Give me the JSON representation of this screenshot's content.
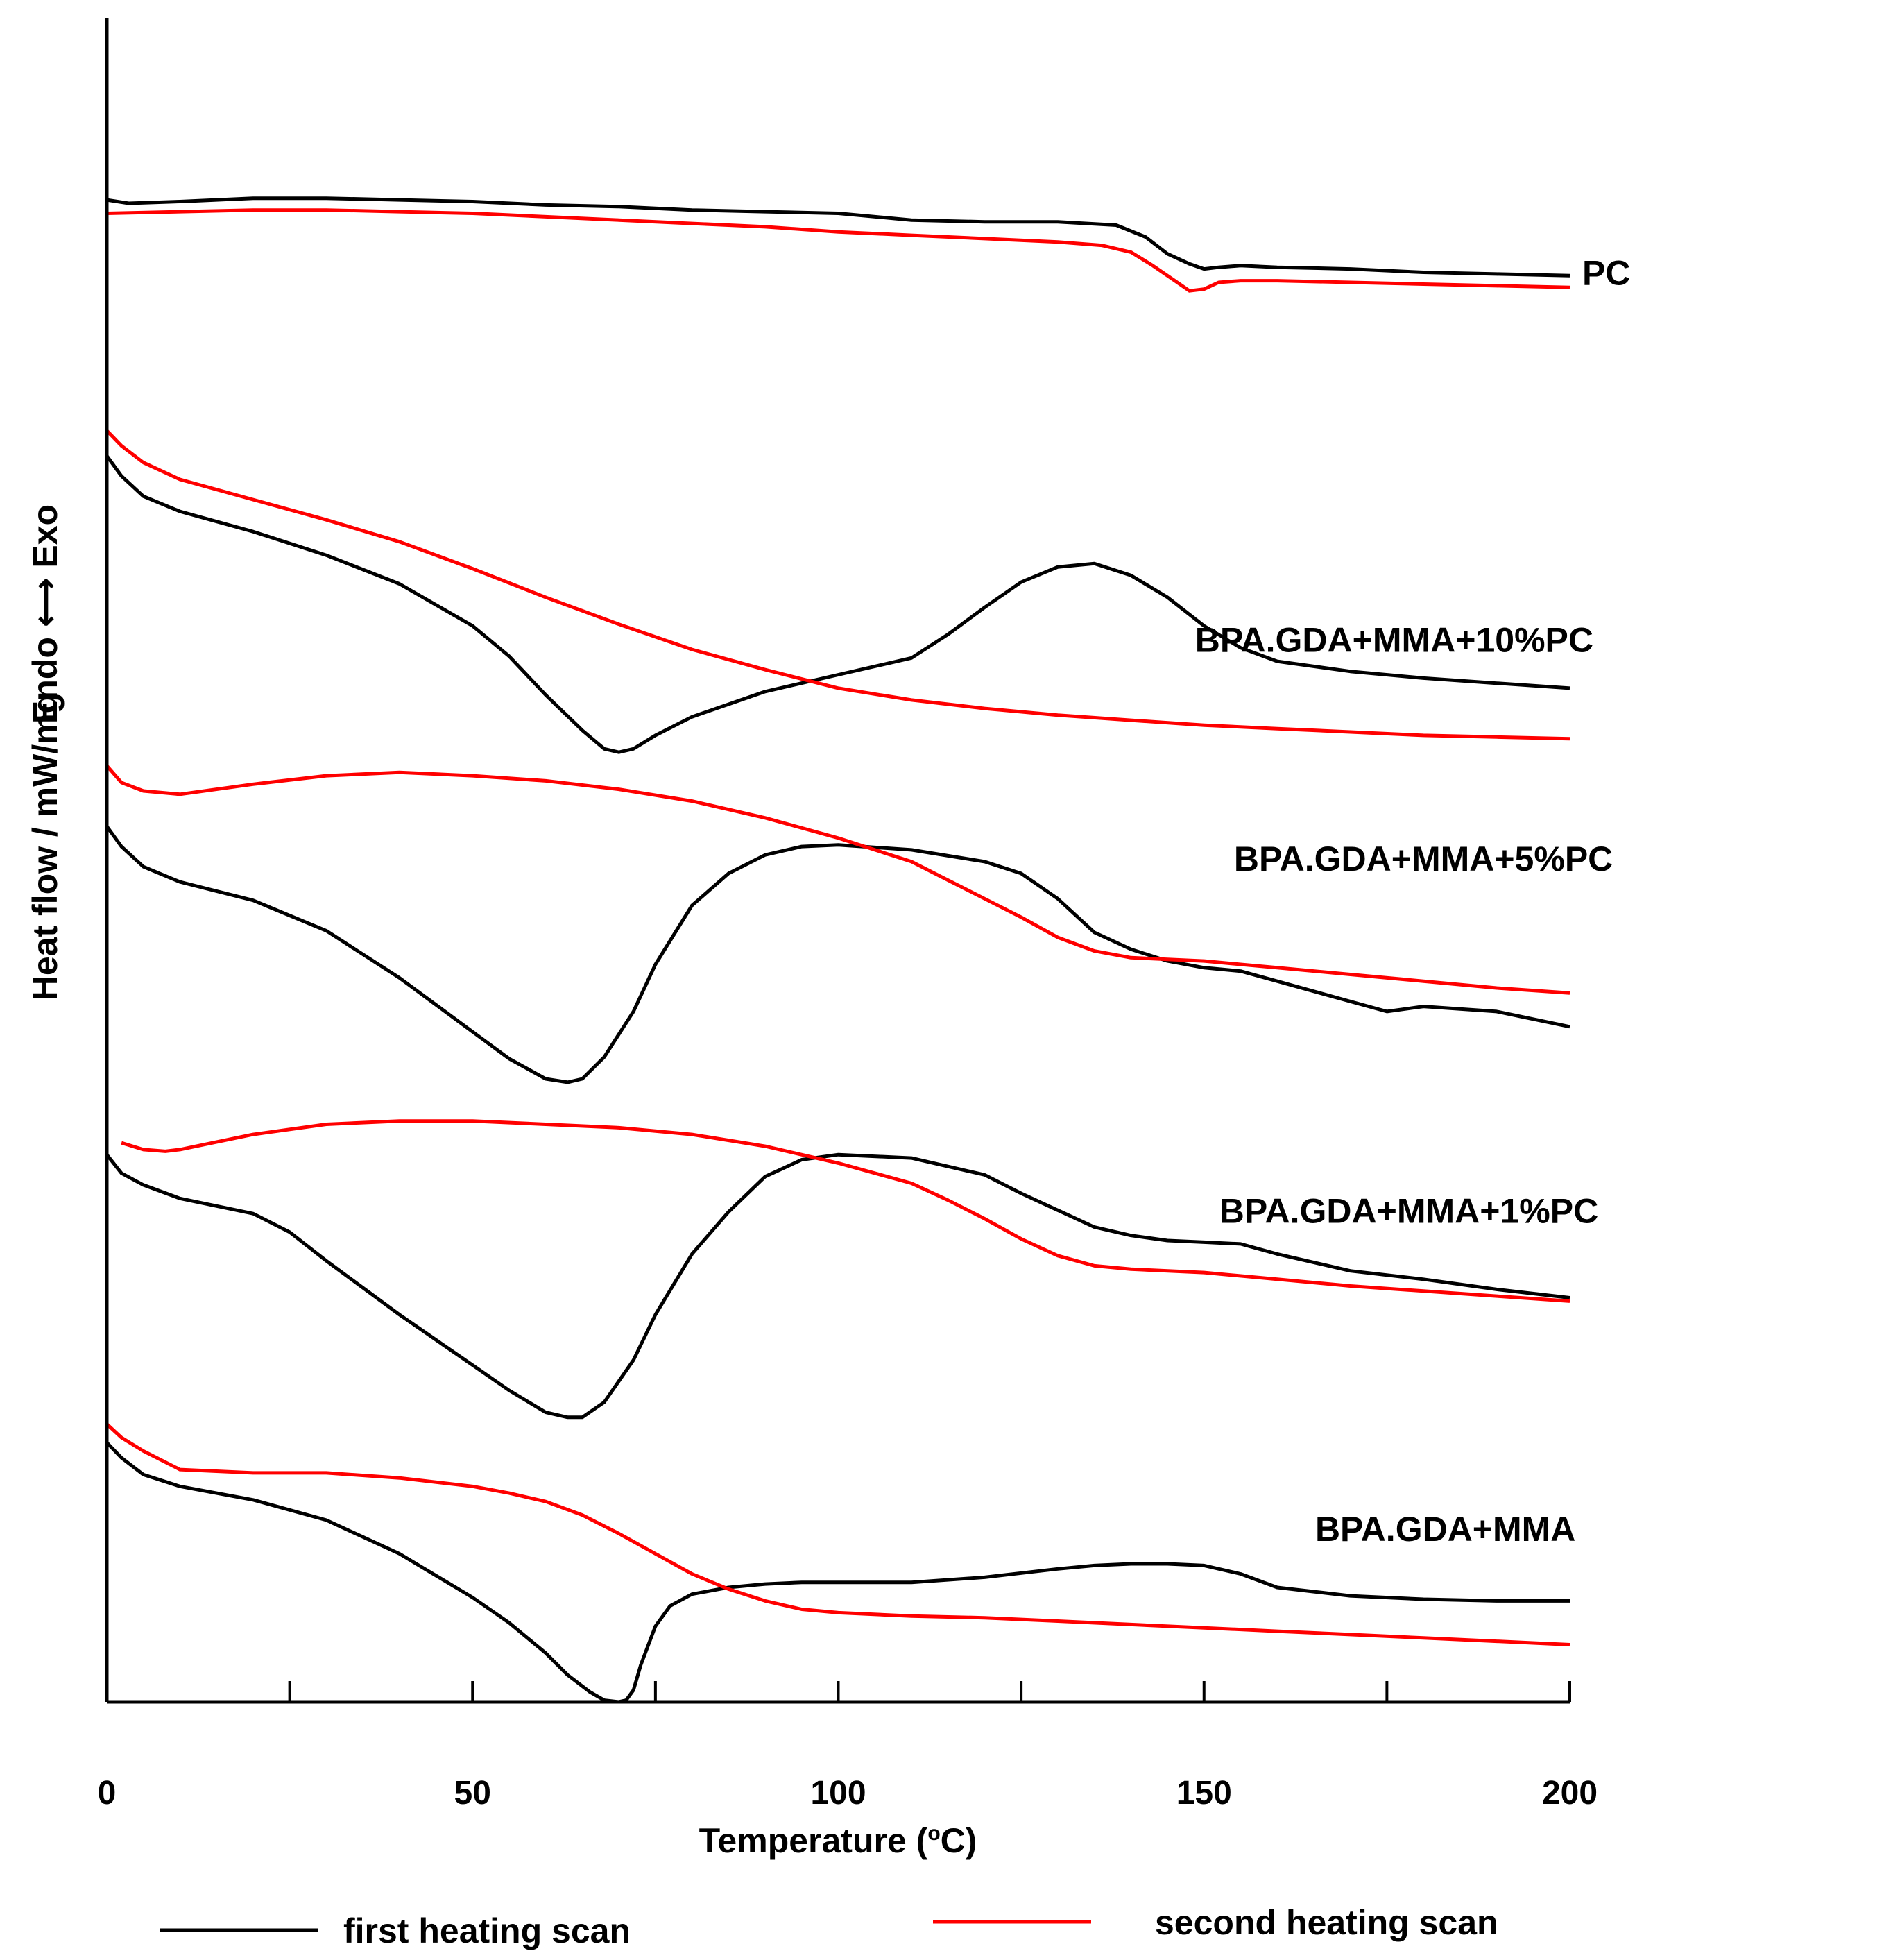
{
  "chart_data": {
    "type": "line",
    "title": "",
    "xlabel": "Temperature (",
    "xlabel_sup": "o",
    "xlabel_tail": "C)",
    "ylabel": "Heat flow / mW/mg",
    "ylabel_secondary": "Endo ⟷ Exo",
    "xlim": [
      0,
      200
    ],
    "ylim": [
      0,
      100
    ],
    "y_units_note": "",
    "x_ticks": [
      0,
      50,
      100,
      150,
      200
    ],
    "x_tick_labels": [
      "0",
      "50",
      "100",
      "150",
      "200"
    ],
    "grid": false,
    "legend_position": "bottom",
    "colors": {
      "first": "#000000",
      "second": "#ff0000"
    },
    "legend": [
      {
        "key": "first",
        "label": "first heating scan"
      },
      {
        "key": "second",
        "label": "second heating scan"
      }
    ],
    "groups": [
      {
        "name": "PC",
        "label_x": 205,
        "label_y": 84.9,
        "series": [
          {
            "key": "first",
            "x": [
              0,
              3,
              10,
              20,
              30,
              40,
              50,
              60,
              70,
              80,
              90,
              100,
              110,
              120,
              130,
              138,
              142,
              145,
              148,
              150,
              152,
              155,
              160,
              170,
              180,
              190,
              200
            ],
            "y": [
              89.2,
              89.0,
              89.1,
              89.3,
              89.3,
              89.2,
              89.1,
              88.9,
              88.8,
              88.6,
              88.5,
              88.4,
              88.0,
              87.9,
              87.9,
              87.7,
              87.0,
              86.0,
              85.4,
              85.1,
              85.2,
              85.3,
              85.2,
              85.1,
              84.9,
              84.8,
              84.7
            ]
          },
          {
            "key": "second",
            "x": [
              0,
              10,
              20,
              30,
              40,
              50,
              60,
              70,
              80,
              90,
              100,
              110,
              120,
              130,
              136,
              140,
              143,
              146,
              148,
              150,
              152,
              155,
              160,
              170,
              180,
              190,
              200
            ],
            "y": [
              88.4,
              88.5,
              88.6,
              88.6,
              88.5,
              88.4,
              88.2,
              88.0,
              87.8,
              87.6,
              87.3,
              87.1,
              86.9,
              86.7,
              86.5,
              86.1,
              85.3,
              84.4,
              83.8,
              83.9,
              84.3,
              84.4,
              84.4,
              84.3,
              84.2,
              84.1,
              84.0
            ]
          }
        ]
      },
      {
        "name": "BPA.GDA+MMA+10%PC",
        "label_x": 176,
        "label_y": 63.1,
        "series": [
          {
            "key": "first",
            "x": [
              0,
              2,
              5,
              10,
              20,
              30,
              40,
              50,
              55,
              60,
              65,
              68,
              70,
              72,
              75,
              80,
              90,
              100,
              110,
              115,
              120,
              125,
              130,
              135,
              140,
              145,
              150,
              155,
              160,
              170,
              180,
              190,
              200
            ],
            "y": [
              74.0,
              72.8,
              71.6,
              70.7,
              69.5,
              68.1,
              66.4,
              63.9,
              62.1,
              59.8,
              57.7,
              56.6,
              56.4,
              56.6,
              57.4,
              58.5,
              60.0,
              61.0,
              62.0,
              63.4,
              65.0,
              66.5,
              67.4,
              67.6,
              66.9,
              65.6,
              63.9,
              62.6,
              61.8,
              61.2,
              60.8,
              60.5,
              60.2
            ]
          },
          {
            "key": "second",
            "x": [
              0,
              2,
              5,
              10,
              20,
              30,
              40,
              50,
              60,
              70,
              80,
              90,
              100,
              110,
              120,
              130,
              140,
              150,
              160,
              170,
              180,
              190,
              200
            ],
            "y": [
              75.5,
              74.6,
              73.6,
              72.6,
              71.4,
              70.2,
              68.9,
              67.3,
              65.6,
              64.0,
              62.5,
              61.3,
              60.2,
              59.5,
              59.0,
              58.6,
              58.3,
              58.0,
              57.8,
              57.6,
              57.4,
              57.3,
              57.2
            ]
          }
        ]
      },
      {
        "name": "BPA.GDA+MMA+5%PC",
        "label_x": 180,
        "label_y": 50.1,
        "series": [
          {
            "key": "first",
            "x": [
              0,
              2,
              5,
              10,
              20,
              30,
              40,
              50,
              55,
              60,
              63,
              65,
              68,
              72,
              75,
              80,
              85,
              90,
              95,
              100,
              110,
              120,
              125,
              130,
              135,
              140,
              145,
              150,
              155,
              160,
              170,
              175,
              180,
              190,
              200
            ],
            "y": [
              52.0,
              50.8,
              49.6,
              48.7,
              47.6,
              45.8,
              43.0,
              39.8,
              38.2,
              37.0,
              36.8,
              37.0,
              38.3,
              41.0,
              43.8,
              47.3,
              49.2,
              50.3,
              50.8,
              50.9,
              50.6,
              49.9,
              49.2,
              47.7,
              45.7,
              44.7,
              44.0,
              43.6,
              43.4,
              42.8,
              41.6,
              41.0,
              41.3,
              41.0,
              40.1
            ]
          },
          {
            "key": "second",
            "x": [
              0,
              2,
              5,
              10,
              20,
              30,
              40,
              50,
              60,
              70,
              80,
              90,
              100,
              110,
              115,
              120,
              125,
              130,
              135,
              140,
              145,
              150,
              155,
              160,
              170,
              180,
              190,
              200
            ],
            "y": [
              55.6,
              54.6,
              54.1,
              53.9,
              54.5,
              55.0,
              55.2,
              55.0,
              54.7,
              54.2,
              53.5,
              52.5,
              51.3,
              49.9,
              48.8,
              47.7,
              46.6,
              45.4,
              44.6,
              44.2,
              44.1,
              44.0,
              43.8,
              43.6,
              43.2,
              42.8,
              42.4,
              42.1
            ]
          }
        ]
      },
      {
        "name": "BPA.GDA+MMA+1%PC",
        "label_x": 178,
        "label_y": 29.2,
        "series": [
          {
            "key": "first",
            "x": [
              0,
              2,
              5,
              10,
              20,
              25,
              30,
              40,
              50,
              55,
              60,
              63,
              65,
              68,
              72,
              75,
              80,
              85,
              90,
              95,
              100,
              110,
              120,
              125,
              130,
              135,
              140,
              145,
              150,
              155,
              160,
              170,
              180,
              190,
              200
            ],
            "y": [
              32.5,
              31.4,
              30.7,
              29.9,
              29.0,
              27.9,
              26.2,
              23.0,
              20.0,
              18.5,
              17.2,
              16.9,
              16.9,
              17.8,
              20.3,
              23.0,
              26.6,
              29.1,
              31.2,
              32.2,
              32.5,
              32.3,
              31.3,
              30.2,
              29.2,
              28.2,
              27.7,
              27.4,
              27.3,
              27.2,
              26.6,
              25.6,
              25.1,
              24.5,
              24.0
            ]
          },
          {
            "key": "second",
            "x": [
              2,
              5,
              8,
              10,
              20,
              30,
              40,
              50,
              60,
              70,
              80,
              90,
              100,
              110,
              115,
              120,
              125,
              130,
              135,
              140,
              150,
              160,
              170,
              180,
              190,
              200
            ],
            "y": [
              33.2,
              32.8,
              32.7,
              32.8,
              33.7,
              34.3,
              34.5,
              34.5,
              34.3,
              34.1,
              33.7,
              33.0,
              32.0,
              30.8,
              29.8,
              28.7,
              27.5,
              26.5,
              25.9,
              25.7,
              25.5,
              25.1,
              24.7,
              24.4,
              24.1,
              23.8
            ]
          }
        ]
      },
      {
        "name": "BPA.GDA+MMA",
        "label_x": 183,
        "label_y": 10.3,
        "series": [
          {
            "key": "first",
            "x": [
              0,
              2,
              5,
              10,
              20,
              30,
              40,
              50,
              55,
              60,
              63,
              66,
              68,
              70,
              71,
              72,
              73,
              75,
              77,
              80,
              85,
              90,
              95,
              100,
              110,
              120,
              130,
              135,
              140,
              145,
              150,
              155,
              160,
              170,
              180,
              190,
              200
            ],
            "y": [
              15.4,
              14.5,
              13.5,
              12.8,
              12.0,
              10.8,
              8.8,
              6.2,
              4.7,
              2.9,
              1.6,
              0.6,
              0.1,
              0.0,
              0.1,
              0.7,
              2.2,
              4.5,
              5.7,
              6.4,
              6.8,
              7.0,
              7.1,
              7.1,
              7.1,
              7.4,
              7.9,
              8.1,
              8.2,
              8.2,
              8.1,
              7.6,
              6.8,
              6.3,
              6.1,
              6.0,
              6.0
            ]
          },
          {
            "key": "second",
            "x": [
              0,
              2,
              5,
              10,
              20,
              30,
              40,
              50,
              55,
              60,
              65,
              70,
              75,
              80,
              85,
              90,
              95,
              100,
              110,
              120,
              130,
              140,
              150,
              160,
              170,
              180,
              190,
              200
            ],
            "y": [
              16.5,
              15.7,
              14.9,
              13.8,
              13.6,
              13.6,
              13.3,
              12.8,
              12.4,
              11.9,
              11.1,
              10.0,
              8.8,
              7.6,
              6.7,
              6.0,
              5.5,
              5.3,
              5.1,
              5.0,
              4.8,
              4.6,
              4.4,
              4.2,
              4.0,
              3.8,
              3.6,
              3.4
            ]
          }
        ]
      }
    ]
  }
}
